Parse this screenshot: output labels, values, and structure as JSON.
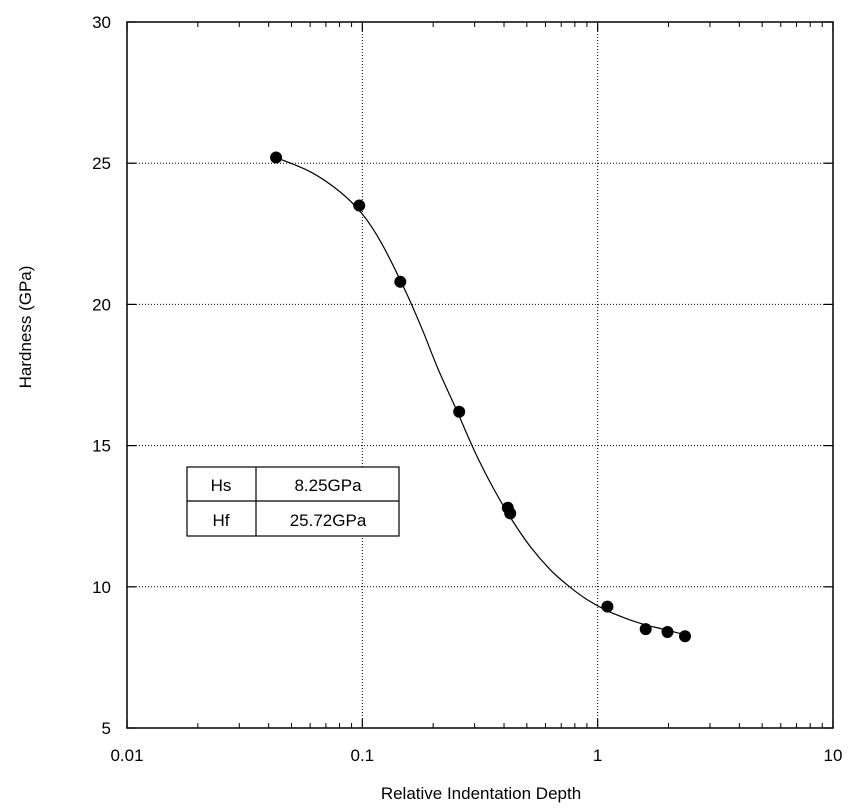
{
  "chart_data": {
    "type": "scatter",
    "title": "",
    "xlabel": "Relative Indentation Depth",
    "ylabel": "Hardness (GPa)",
    "xscale": "log",
    "xlim": [
      0.01,
      10
    ],
    "ylim": [
      5,
      30
    ],
    "grid": true,
    "x_tick_labels": [
      "0.01",
      "0.1",
      "1",
      "10"
    ],
    "y_tick_labels": [
      "5",
      "10",
      "15",
      "20",
      "25",
      "30"
    ],
    "x_ticks": [
      0.01,
      0.1,
      1,
      10
    ],
    "y_ticks": [
      5,
      10,
      15,
      20,
      25,
      30
    ],
    "series": [
      {
        "kind": "points",
        "x": [
          0.043,
          0.097,
          0.145,
          0.258,
          0.415,
          0.425,
          1.1,
          1.6,
          1.98,
          2.35
        ],
        "y": [
          25.2,
          23.5,
          20.8,
          16.2,
          12.8,
          12.6,
          9.3,
          8.5,
          8.4,
          8.25
        ]
      },
      {
        "kind": "fit-curve",
        "x": [
          0.043,
          0.06,
          0.08,
          0.1,
          0.12,
          0.15,
          0.18,
          0.21,
          0.25,
          0.3,
          0.36,
          0.43,
          0.52,
          0.63,
          0.76,
          0.9,
          1.1,
          1.35,
          1.6,
          1.9,
          2.35
        ],
        "y": [
          25.2,
          24.7,
          24.0,
          23.2,
          22.2,
          20.6,
          19.1,
          17.7,
          16.3,
          14.8,
          13.5,
          12.4,
          11.4,
          10.6,
          10.0,
          9.55,
          9.15,
          8.85,
          8.65,
          8.5,
          8.3
        ]
      }
    ],
    "table": {
      "rows": [
        [
          "Hs",
          "8.25GPa"
        ],
        [
          "Hf",
          "25.72GPa"
        ]
      ]
    }
  }
}
